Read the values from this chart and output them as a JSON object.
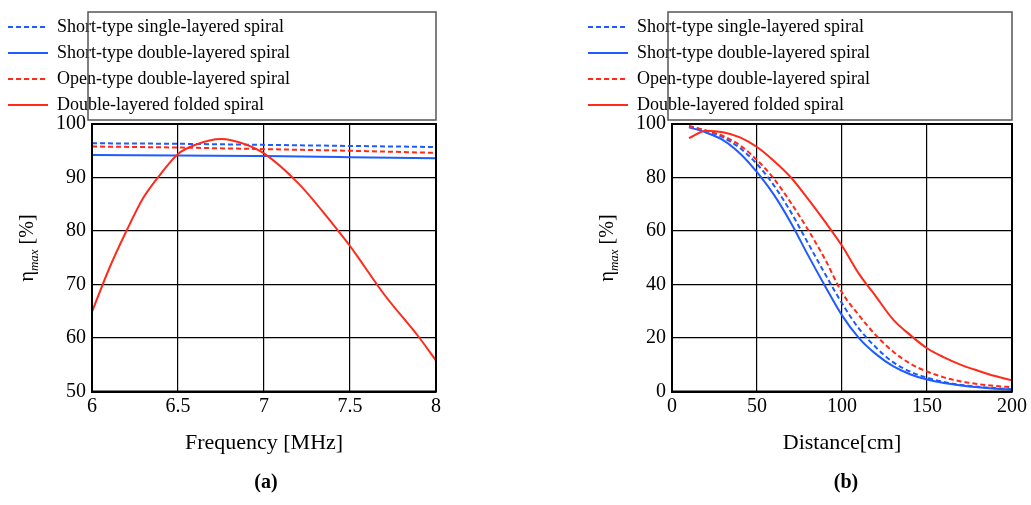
{
  "chart_data": [
    {
      "type": "line",
      "xlabel": "Frequency [MHz]",
      "ylabel": "η$_{max}$ [%]",
      "annotations": [
        "(a)"
      ],
      "xlim": [
        6,
        8
      ],
      "xticks": [
        6,
        6.5,
        7,
        7.5,
        8
      ],
      "ylim": [
        50,
        100
      ],
      "yticks": [
        50,
        60,
        70,
        80,
        90,
        100
      ],
      "grid": true,
      "legend": "top",
      "marker": "none",
      "series": [
        {
          "name": "Short-type single-layered spiral",
          "color": "#1f5cff",
          "line_style": "dashed",
          "x": [
            6,
            6.5,
            7,
            7.5,
            8
          ],
          "values": [
            96.4,
            96.3,
            96.1,
            95.9,
            95.7
          ]
        },
        {
          "name": "Short-type double-layered spiral",
          "color": "#1f5cff",
          "line_style": "solid",
          "x": [
            6,
            6.5,
            7,
            7.5,
            8
          ],
          "values": [
            94.2,
            94.1,
            94.0,
            93.8,
            93.6
          ]
        },
        {
          "name": "Open-type double-layered spiral",
          "color": "#ff2a1a",
          "line_style": "dashed",
          "x": [
            6,
            6.5,
            7,
            7.5,
            8
          ],
          "values": [
            95.8,
            95.6,
            95.3,
            95.0,
            94.6
          ]
        },
        {
          "name": "Double-layered folded spiral",
          "color": "#ff2a1a",
          "line_style": "solid",
          "x": [
            6,
            6.1,
            6.2,
            6.3,
            6.4,
            6.5,
            6.6,
            6.75,
            6.9,
            7,
            7.2,
            7.4,
            7.5,
            7.7,
            7.9,
            8
          ],
          "values": [
            64.9,
            73,
            80,
            86.3,
            90.7,
            94.4,
            96.1,
            97.2,
            96.1,
            94.5,
            88.9,
            81.3,
            77.2,
            68.1,
            60.2,
            55.8
          ]
        }
      ]
    },
    {
      "type": "line",
      "xlabel": "Distance[cm]",
      "ylabel": "η$_{max}$ [%]",
      "annotations": [
        "(b)"
      ],
      "xlim": [
        0,
        200
      ],
      "xticks": [
        0,
        50,
        100,
        150,
        200
      ],
      "ylim": [
        0,
        100
      ],
      "yticks": [
        0,
        20,
        40,
        60,
        80,
        100
      ],
      "grid": true,
      "legend": "top",
      "marker": "none",
      "series": [
        {
          "name": "Short-type single-layered spiral",
          "color": "#1f5cff",
          "line_style": "dashed",
          "x": [
            10,
            20,
            30,
            40,
            50,
            60,
            70,
            80,
            90,
            100,
            110,
            120,
            130,
            140,
            150,
            160,
            170,
            180,
            190,
            200
          ],
          "values": [
            99.3,
            97.5,
            95,
            91,
            85,
            77,
            67,
            55.5,
            44,
            33,
            23.5,
            16.5,
            11,
            7.5,
            5.2,
            3.6,
            2.5,
            1.8,
            1.3,
            0.9
          ]
        },
        {
          "name": "Short-type double-layered spiral",
          "color": "#1f5cff",
          "line_style": "solid",
          "x": [
            10,
            20,
            30,
            40,
            50,
            60,
            70,
            80,
            90,
            100,
            110,
            120,
            130,
            140,
            150,
            160,
            170,
            180,
            190,
            200
          ],
          "values": [
            98.8,
            96.8,
            94,
            89,
            82,
            73.5,
            63,
            51,
            39.5,
            28.5,
            20,
            14,
            9.5,
            6.5,
            4.5,
            3.2,
            2.3,
            1.6,
            1.1,
            0.8
          ]
        },
        {
          "name": "Open-type double-layered spiral",
          "color": "#ff2a1a",
          "line_style": "dashed",
          "x": [
            10,
            20,
            30,
            40,
            50,
            60,
            70,
            80,
            90,
            100,
            110,
            120,
            130,
            140,
            150,
            160,
            170,
            180,
            190,
            200
          ],
          "values": [
            99,
            97.5,
            95.5,
            92,
            86.5,
            79.5,
            70.5,
            60.5,
            49.5,
            37,
            28.5,
            21,
            15,
            10.5,
            7.5,
            5.3,
            3.8,
            2.8,
            2.1,
            1.6
          ]
        },
        {
          "name": "Double-layered folded spiral",
          "color": "#ff2a1a",
          "line_style": "solid",
          "x": [
            10,
            20,
            30,
            40,
            50,
            60,
            70,
            80,
            90,
            100,
            110,
            120,
            130,
            140,
            150,
            160,
            170,
            180,
            190,
            200
          ],
          "values": [
            94.7,
            97.5,
            96.9,
            95,
            91.4,
            86.2,
            80,
            72,
            63.5,
            54.5,
            44,
            35.5,
            27,
            21.2,
            16.2,
            12.8,
            10,
            7.8,
            5.8,
            4.2
          ]
        }
      ]
    }
  ]
}
